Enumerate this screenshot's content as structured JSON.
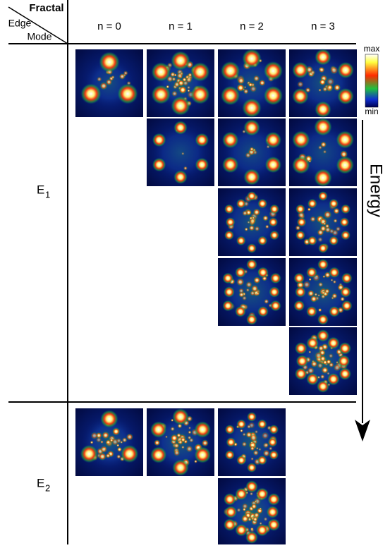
{
  "header": {
    "fractal": "Fractal",
    "edge": "Edge",
    "mode": "Mode"
  },
  "columns": [
    "n = 0",
    "n = 1",
    "n = 2",
    "n = 3"
  ],
  "rows": [
    {
      "label": "E",
      "subscript": "1"
    },
    {
      "label": "E",
      "subscript": "2"
    }
  ],
  "colorbar": {
    "max": "max",
    "min": "min"
  },
  "axis_label": "Energy"
}
